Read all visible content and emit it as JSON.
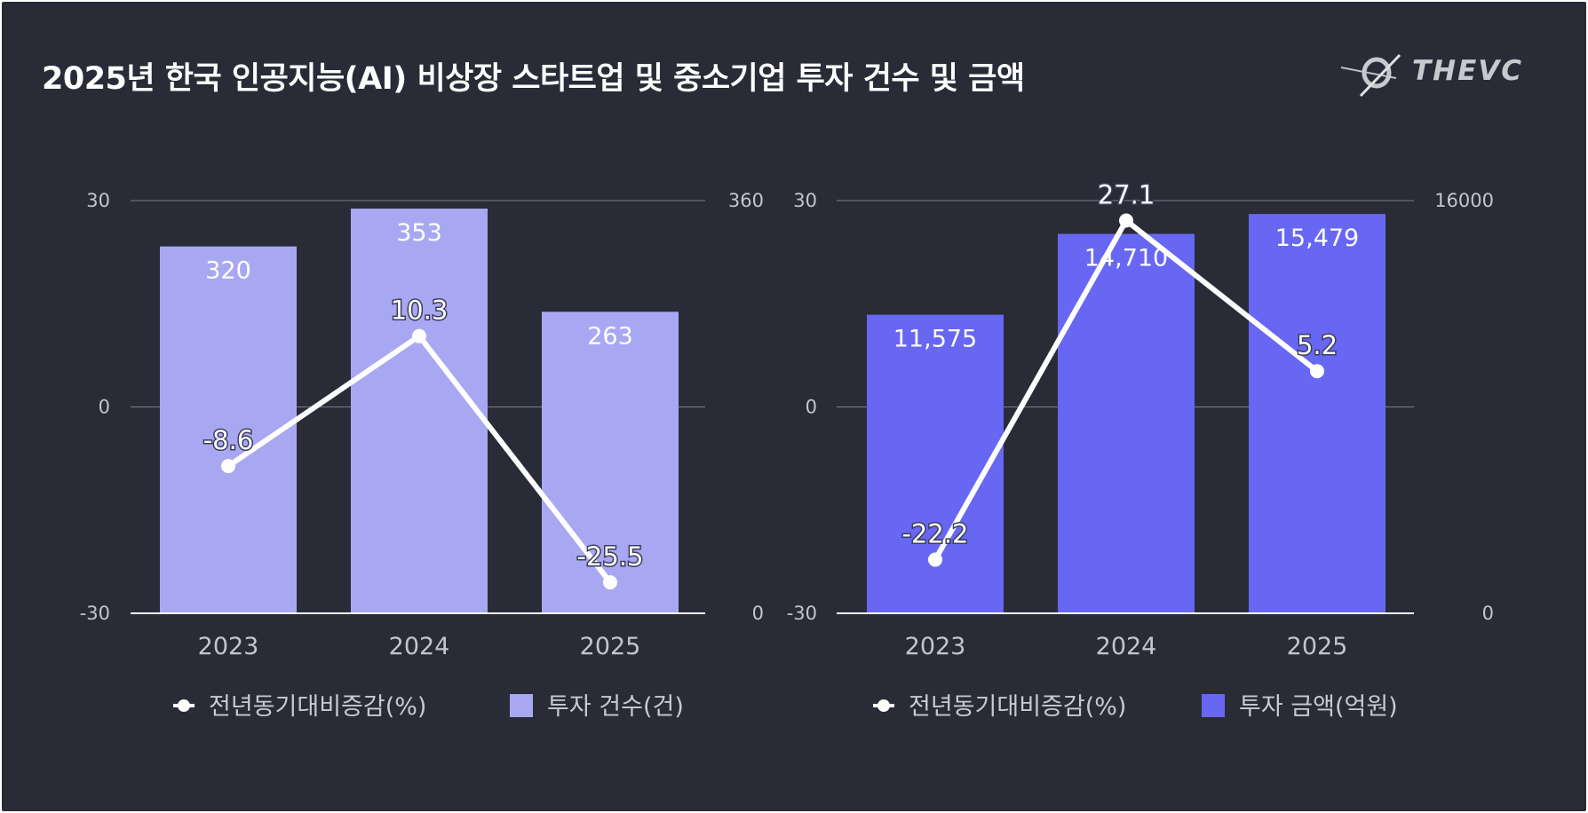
{
  "title": "2025년 한국 인공지능(AI) 비상장 스타트업 및 중소기업 투자 건수 및 금액",
  "logo": {
    "text": "THEVC"
  },
  "colors": {
    "background": "#292c37",
    "count_bar": "#a8a8f2",
    "amount_bar": "#6767f3",
    "line": "#ffffff",
    "grid": "#7b7e88",
    "axis_text": "#c4c5cb"
  },
  "chart_data": [
    {
      "type": "bar",
      "title": "",
      "categories": [
        "2023",
        "2024",
        "2025"
      ],
      "series": [
        {
          "name": "투자 건수(건)",
          "type": "bar",
          "axis": "right",
          "values": [
            320,
            353,
            263
          ],
          "labels": [
            "320",
            "353",
            "263"
          ]
        },
        {
          "name": "전년동기대비증감(%)",
          "type": "line",
          "axis": "left",
          "values": [
            -8.6,
            10.3,
            -25.5
          ],
          "labels": [
            "-8.6",
            "10.3",
            "-25.5"
          ]
        }
      ],
      "left_axis": {
        "ylim": [
          -30,
          30
        ],
        "ticks": [
          "30",
          "0",
          "-30"
        ]
      },
      "right_axis": {
        "ylim": [
          0,
          360
        ],
        "ticks": [
          "360",
          "0"
        ]
      },
      "grid": true,
      "legend": "bottom"
    },
    {
      "type": "bar",
      "title": "",
      "categories": [
        "2023",
        "2024",
        "2025"
      ],
      "series": [
        {
          "name": "투자 금액(억원)",
          "type": "bar",
          "axis": "right",
          "values": [
            11575,
            14710,
            15479
          ],
          "labels": [
            "11,575",
            "14,710",
            "15,479"
          ]
        },
        {
          "name": "전년동기대비증감(%)",
          "type": "line",
          "axis": "left",
          "values": [
            -22.2,
            27.1,
            5.2
          ],
          "labels": [
            "-22.2",
            "27.1",
            "5.2"
          ]
        }
      ],
      "left_axis": {
        "ylim": [
          -30,
          30
        ],
        "ticks": [
          "30",
          "0",
          "-30"
        ]
      },
      "right_axis": {
        "ylim": [
          0,
          16000
        ],
        "ticks": [
          "16000",
          "0"
        ]
      },
      "grid": true,
      "legend": "bottom"
    }
  ]
}
